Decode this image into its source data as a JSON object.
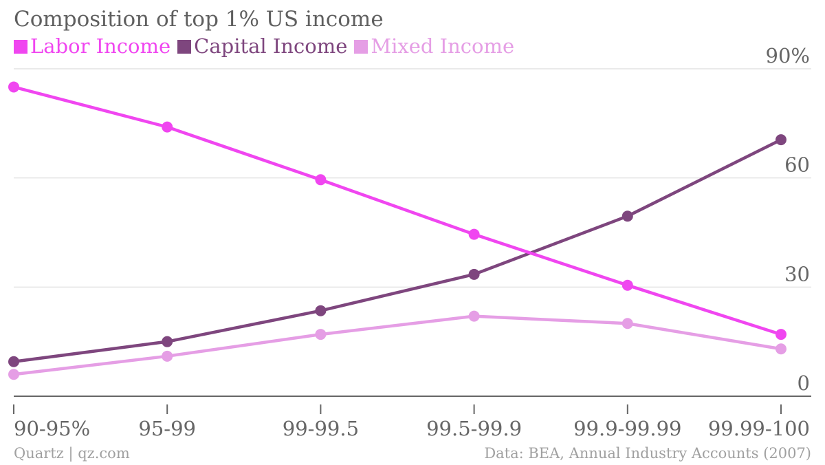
{
  "chart_data": {
    "type": "line",
    "title": "Composition of top 1% US income",
    "categories": [
      "90-95%",
      "95-99",
      "99-99.5",
      "99.5-99.9",
      "99.9-99.99",
      "99.99-100"
    ],
    "y_ticks": [
      "0",
      "30",
      "60",
      "90%"
    ],
    "ylim": [
      0,
      90
    ],
    "grid": true,
    "legend_position": "top-left",
    "series": [
      {
        "name": "Labor Income",
        "color": "#f046f0",
        "values": [
          85,
          74,
          59.5,
          44.5,
          30.5,
          17
        ]
      },
      {
        "name": "Capital Income",
        "color": "#7e467e",
        "values": [
          9.5,
          15,
          23.5,
          33.5,
          49.5,
          70.5
        ]
      },
      {
        "name": "Mixed Income",
        "color": "#e59ee5",
        "values": [
          6,
          11,
          17,
          22,
          20,
          13
        ]
      }
    ]
  },
  "footer": {
    "source": "Quartz | qz.com",
    "data_note": "Data: BEA, Annual Industry Accounts (2007)"
  }
}
